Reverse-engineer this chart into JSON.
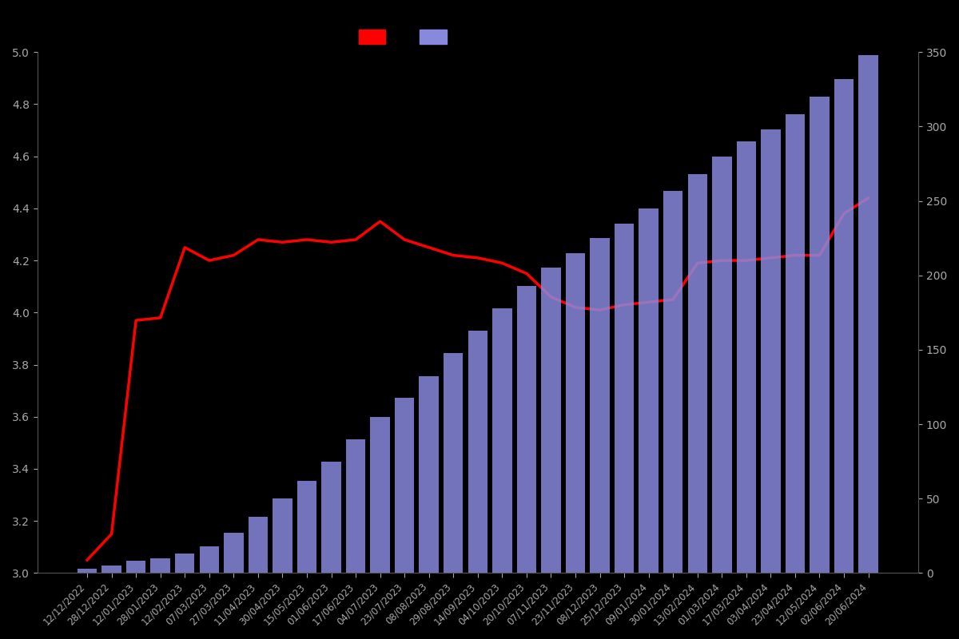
{
  "dates": [
    "12/12/2022",
    "28/12/2022",
    "12/01/2023",
    "28/01/2023",
    "12/02/2023",
    "07/03/2023",
    "27/03/2023",
    "11/04/2023",
    "30/04/2023",
    "15/05/2023",
    "01/06/2023",
    "17/06/2023",
    "04/07/2023",
    "23/07/2023",
    "08/08/2023",
    "29/08/2023",
    "14/09/2023",
    "04/10/2023",
    "20/10/2023",
    "07/11/2023",
    "23/11/2023",
    "08/12/2023",
    "25/12/2023",
    "09/01/2024",
    "30/01/2024",
    "13/02/2024",
    "01/03/2024",
    "17/03/2024",
    "03/04/2024",
    "23/04/2024",
    "12/05/2024",
    "02/06/2024",
    "20/06/2024"
  ],
  "bar_values": [
    3,
    5,
    8,
    10,
    13,
    18,
    27,
    38,
    50,
    62,
    75,
    90,
    105,
    118,
    132,
    148,
    163,
    178,
    193,
    205,
    215,
    225,
    235,
    245,
    257,
    268,
    280,
    290,
    298,
    308,
    320,
    332,
    348
  ],
  "line_values": [
    3.05,
    3.15,
    3.97,
    3.98,
    4.25,
    4.2,
    4.22,
    4.28,
    4.27,
    4.28,
    4.27,
    4.28,
    4.35,
    4.28,
    4.25,
    4.22,
    4.21,
    4.19,
    4.15,
    4.06,
    4.02,
    4.01,
    4.03,
    4.04,
    4.05,
    4.19,
    4.2,
    4.2,
    4.21,
    4.22,
    4.22,
    4.38,
    4.44
  ],
  "bar_color": "#8888dd",
  "line_color": "#ff0000",
  "background_color": "#000000",
  "text_color": "#aaaaaa",
  "left_ylim": [
    3.0,
    5.0
  ],
  "right_ylim": [
    0,
    350
  ],
  "left_yticks": [
    3.0,
    3.2,
    3.4,
    3.6,
    3.8,
    4.0,
    4.2,
    4.4,
    4.6,
    4.8,
    5.0
  ],
  "right_yticks": [
    0,
    50,
    100,
    150,
    200,
    250,
    300,
    350
  ]
}
